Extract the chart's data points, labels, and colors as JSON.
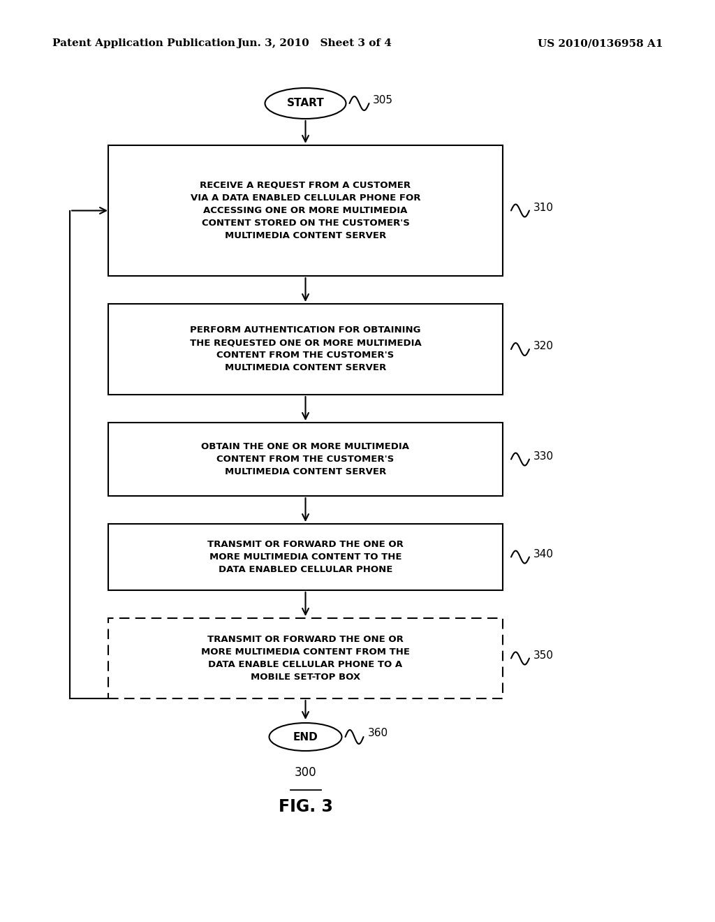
{
  "bg_color": "#ffffff",
  "header_left": "Patent Application Publication",
  "header_mid": "Jun. 3, 2010   Sheet 3 of 4",
  "header_right": "US 2010/0136958 A1",
  "fig_label": "FIG. 3",
  "fig_number": "300",
  "start_label": "START",
  "start_ref": "305",
  "end_label": "END",
  "end_ref": "360",
  "boxes": [
    {
      "id": "310",
      "ref": "310",
      "text": "RECEIVE A REQUEST FROM A CUSTOMER\nVIA A DATA ENABLED CELLULAR PHONE FOR\nACCESSING ONE OR MORE MULTIMEDIA\nCONTENT STORED ON THE CUSTOMER'S\nMULTIMEDIA CONTENT SERVER",
      "dashed": false
    },
    {
      "id": "320",
      "ref": "320",
      "text": "PERFORM AUTHENTICATION FOR OBTAINING\nTHE REQUESTED ONE OR MORE MULTIMEDIA\nCONTENT FROM THE CUSTOMER'S\nMULTIMEDIA CONTENT SERVER",
      "dashed": false
    },
    {
      "id": "330",
      "ref": "330",
      "text": "OBTAIN THE ONE OR MORE MULTIMEDIA\nCONTENT FROM THE CUSTOMER'S\nMULTIMEDIA CONTENT SERVER",
      "dashed": false
    },
    {
      "id": "340",
      "ref": "340",
      "text": "TRANSMIT OR FORWARD THE ONE OR\nMORE MULTIMEDIA CONTENT TO THE\nDATA ENABLED CELLULAR PHONE",
      "dashed": false
    },
    {
      "id": "350",
      "ref": "350",
      "text": "TRANSMIT OR FORWARD THE ONE OR\nMORE MULTIMEDIA CONTENT FROM THE\nDATA ENABLE CELLULAR PHONE TO A\nMOBILE SET-TOP BOX",
      "dashed": true
    }
  ]
}
